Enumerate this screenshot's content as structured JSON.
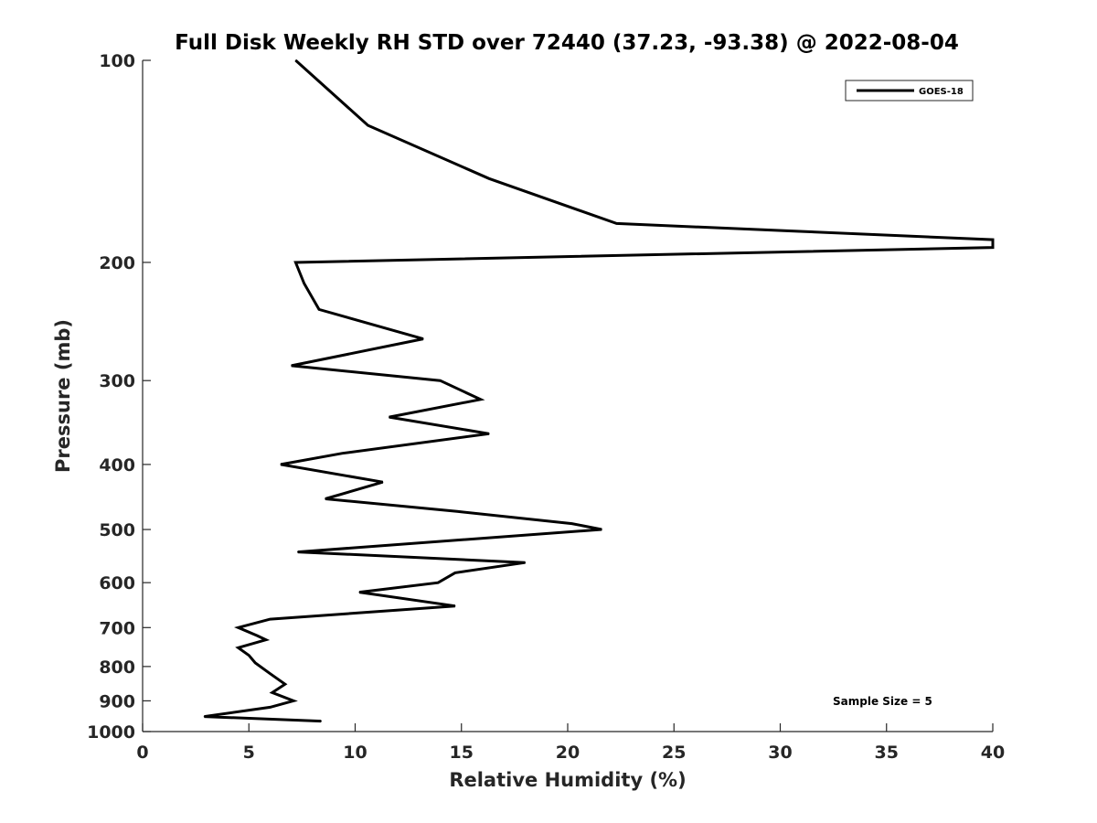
{
  "chart_data": {
    "type": "line",
    "title": "Full Disk Weekly RH STD over 72440 (37.23, -93.38) @ 2022-08-04",
    "xlabel": "Relative Humidity (%)",
    "ylabel": "Pressure (mb)",
    "xlim": [
      0,
      40
    ],
    "ylim": [
      100,
      1000
    ],
    "y_scale": "log",
    "y_reversed": true,
    "grid": false,
    "legend_position": "top-right",
    "x_ticks": [
      0,
      5,
      10,
      15,
      20,
      25,
      30,
      35,
      40
    ],
    "x_tick_labels": [
      "0",
      "5",
      "10",
      "15",
      "20",
      "25",
      "30",
      "35",
      "40"
    ],
    "y_ticks": [
      100,
      200,
      300,
      400,
      500,
      600,
      700,
      800,
      900,
      1000
    ],
    "y_tick_labels": [
      "100",
      "200",
      "300",
      "400",
      "500",
      "600",
      "700",
      "800",
      "900",
      "1000"
    ],
    "series": [
      {
        "name": "GOES-18",
        "color": "#000000",
        "points": [
          [
            7.2,
            100
          ],
          [
            10.6,
            125
          ],
          [
            16.3,
            150
          ],
          [
            22.3,
            175
          ],
          [
            40,
            185
          ],
          [
            40,
            190
          ],
          [
            7.2,
            200
          ],
          [
            7.6,
            215
          ],
          [
            8.3,
            235
          ],
          [
            13.2,
            260
          ],
          [
            7.0,
            285
          ],
          [
            14.0,
            300
          ],
          [
            15.9,
            320
          ],
          [
            11.6,
            340
          ],
          [
            16.3,
            360
          ],
          [
            9.4,
            385
          ],
          [
            6.5,
            400
          ],
          [
            11.3,
            425
          ],
          [
            8.6,
            450
          ],
          [
            14.8,
            470
          ],
          [
            20.2,
            490
          ],
          [
            21.6,
            500
          ],
          [
            7.3,
            540
          ],
          [
            18.0,
            560
          ],
          [
            14.7,
            580
          ],
          [
            13.9,
            600
          ],
          [
            10.2,
            620
          ],
          [
            14.7,
            650
          ],
          [
            6.0,
            680
          ],
          [
            4.5,
            700
          ],
          [
            5.4,
            720
          ],
          [
            5.8,
            730
          ],
          [
            4.5,
            750
          ],
          [
            5.0,
            770
          ],
          [
            5.3,
            790
          ],
          [
            6.0,
            820
          ],
          [
            6.7,
            850
          ],
          [
            6.1,
            875
          ],
          [
            7.1,
            900
          ],
          [
            6.0,
            920
          ],
          [
            2.9,
            950
          ],
          [
            8.4,
            965
          ]
        ]
      }
    ],
    "annotations": [
      "Sample Size = 5"
    ]
  }
}
